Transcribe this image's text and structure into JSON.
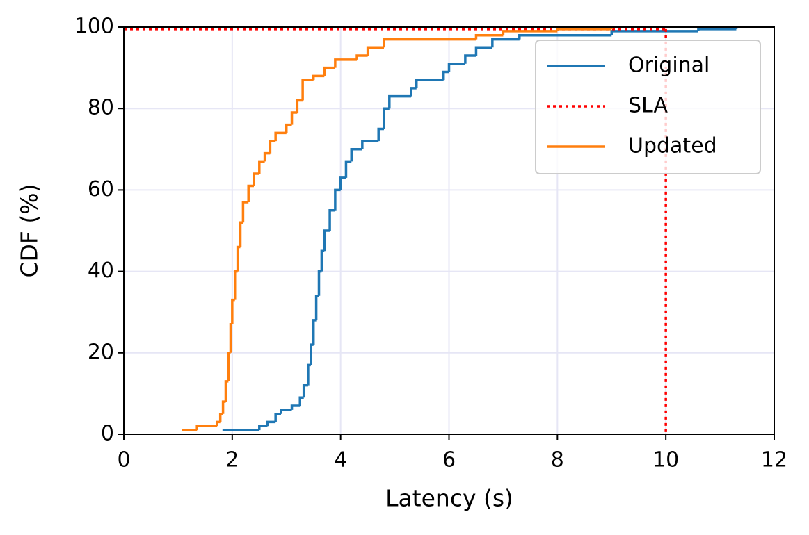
{
  "chart_data": {
    "type": "line",
    "step": true,
    "xlabel": "Latency (s)",
    "ylabel": "CDF (%)",
    "xlim": [
      0,
      12
    ],
    "xticks": [
      0,
      2,
      4,
      6,
      8,
      10,
      12
    ],
    "ylim": [
      0,
      100
    ],
    "yticks": [
      0,
      20,
      40,
      60,
      80,
      100
    ],
    "grid": true,
    "legend": "upper right",
    "series": [
      {
        "name": "Original",
        "color": "#1f77b4",
        "style": "solid",
        "x": [
          1.82,
          2.5,
          2.65,
          2.8,
          2.9,
          3.1,
          3.25,
          3.32,
          3.4,
          3.45,
          3.5,
          3.55,
          3.6,
          3.65,
          3.7,
          3.8,
          3.9,
          4.0,
          4.1,
          4.2,
          4.4,
          4.7,
          4.8,
          4.9,
          5.3,
          5.4,
          5.9,
          6.0,
          6.3,
          6.5,
          6.8,
          7.3,
          9.0,
          10.6,
          11.3
        ],
        "values": [
          1,
          2,
          3,
          5,
          6,
          7,
          9,
          12,
          17,
          22,
          28,
          34,
          40,
          45,
          50,
          55,
          60,
          63,
          67,
          70,
          72,
          75,
          80,
          83,
          85,
          87,
          89,
          91,
          93,
          95,
          97,
          98,
          99,
          99.5,
          100
        ]
      },
      {
        "name": "SLA",
        "color": "#ff0000",
        "style": "dotted",
        "x": [
          0,
          10,
          10
        ],
        "values": [
          99.5,
          99.5,
          0
        ]
      },
      {
        "name": "Updated",
        "color": "#ff7f0e",
        "style": "solid",
        "x": [
          1.07,
          1.35,
          1.72,
          1.78,
          1.83,
          1.88,
          1.93,
          1.97,
          2.0,
          2.05,
          2.1,
          2.15,
          2.2,
          2.3,
          2.4,
          2.5,
          2.6,
          2.7,
          2.8,
          3.0,
          3.1,
          3.2,
          3.3,
          3.5,
          3.7,
          3.9,
          4.3,
          4.5,
          4.8,
          6.5,
          7.0,
          8.0,
          9.0
        ],
        "values": [
          1,
          2,
          3,
          5,
          8,
          13,
          20,
          27,
          33,
          40,
          46,
          52,
          57,
          61,
          64,
          67,
          69,
          72,
          74,
          76,
          79,
          82,
          87,
          88,
          90,
          92,
          93,
          95,
          97,
          98,
          99,
          99.5,
          100
        ]
      }
    ]
  }
}
